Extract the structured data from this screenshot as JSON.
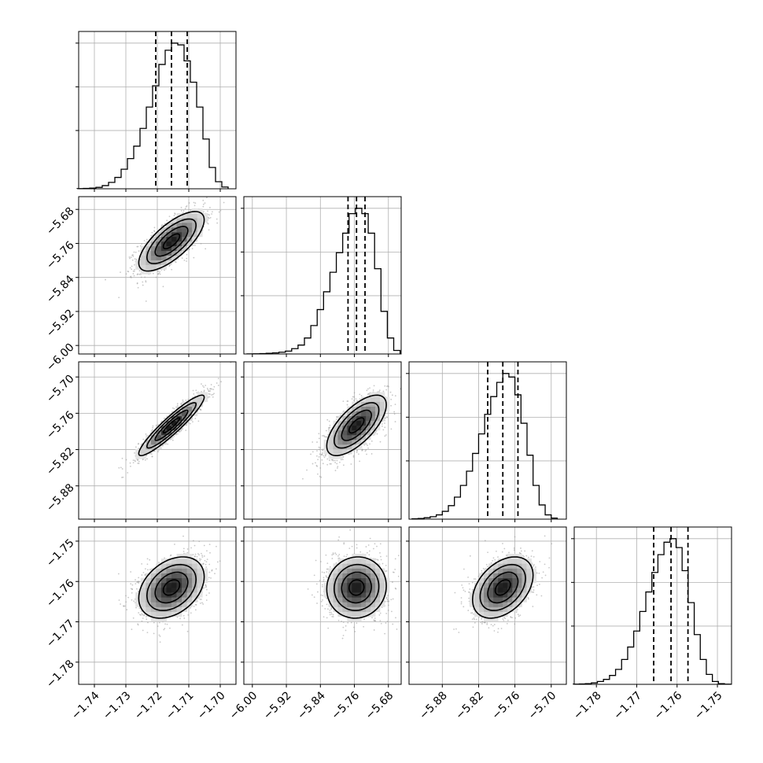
{
  "chart_data": {
    "type": "corner",
    "description_type": "scatter",
    "grid": true,
    "parameters": [
      {
        "id": "p1",
        "range": [
          -1.745,
          -1.695
        ],
        "ticks": [
          -1.74,
          -1.73,
          -1.72,
          -1.71,
          -1.7
        ],
        "tick_labels": [
          "−1.74",
          "−1.73",
          "−1.72",
          "−1.71",
          "−1.70"
        ],
        "mean": -1.7155,
        "sd": 0.0052,
        "quantiles": [
          -1.7205,
          -1.7155,
          -1.7105
        ],
        "hist": [
          [
            -1.7445,
            0.005
          ],
          [
            -1.7425,
            0.01
          ],
          [
            -1.7405,
            0.02
          ],
          [
            -1.7385,
            0.04
          ],
          [
            -1.7365,
            0.09
          ],
          [
            -1.7345,
            0.18
          ],
          [
            -1.7325,
            0.32
          ],
          [
            -1.7305,
            0.55
          ],
          [
            -1.7285,
            0.85
          ],
          [
            -1.7265,
            1.2
          ],
          [
            -1.7245,
            1.7
          ],
          [
            -1.7225,
            2.3
          ],
          [
            -1.7205,
            2.9
          ],
          [
            -1.7185,
            3.5
          ],
          [
            -1.7165,
            3.9
          ],
          [
            -1.7145,
            4.1
          ],
          [
            -1.7125,
            4.05
          ],
          [
            -1.7105,
            3.6
          ],
          [
            -1.7085,
            3.0
          ],
          [
            -1.7065,
            2.3
          ],
          [
            -1.7045,
            1.4
          ],
          [
            -1.7025,
            0.6
          ],
          [
            -1.7005,
            0.2
          ],
          [
            -1.6985,
            0.05
          ]
        ]
      },
      {
        "id": "p2",
        "range": [
          -6.02,
          -5.65
        ],
        "ticks": [
          -6.0,
          -5.92,
          -5.84,
          -5.76,
          -5.68
        ],
        "tick_labels": [
          "−6.00",
          "−5.92",
          "−5.84",
          "−5.76",
          "−5.68"
        ],
        "mean": -5.755,
        "sd": 0.035,
        "quantiles": [
          -5.775,
          -5.755,
          -5.735
        ],
        "hist": [
          [
            -6.005,
            0.002
          ],
          [
            -5.99,
            0.005
          ],
          [
            -5.975,
            0.01
          ],
          [
            -5.96,
            0.02
          ],
          [
            -5.945,
            0.03
          ],
          [
            -5.93,
            0.05
          ],
          [
            -5.915,
            0.08
          ],
          [
            -5.9,
            0.15
          ],
          [
            -5.885,
            0.25
          ],
          [
            -5.87,
            0.45
          ],
          [
            -5.855,
            0.8
          ],
          [
            -5.84,
            1.25
          ],
          [
            -5.825,
            1.75
          ],
          [
            -5.81,
            2.3
          ],
          [
            -5.795,
            2.85
          ],
          [
            -5.78,
            3.4
          ],
          [
            -5.765,
            3.95
          ],
          [
            -5.75,
            4.1
          ],
          [
            -5.735,
            3.95
          ],
          [
            -5.72,
            3.4
          ],
          [
            -5.705,
            2.4
          ],
          [
            -5.69,
            1.2
          ],
          [
            -5.675,
            0.45
          ],
          [
            -5.66,
            0.1
          ]
        ]
      },
      {
        "id": "p3",
        "range": [
          -5.935,
          -5.675
        ],
        "ticks": [
          -5.88,
          -5.82,
          -5.76,
          -5.7
        ],
        "tick_labels": [
          "−5.88",
          "−5.82",
          "−5.76",
          "−5.70"
        ],
        "mean": -5.78,
        "sd": 0.025,
        "quantiles": [
          -5.805,
          -5.78,
          -5.755
        ],
        "hist": [
          [
            -5.925,
            0.01
          ],
          [
            -5.915,
            0.02
          ],
          [
            -5.905,
            0.04
          ],
          [
            -5.895,
            0.07
          ],
          [
            -5.885,
            0.12
          ],
          [
            -5.875,
            0.22
          ],
          [
            -5.865,
            0.38
          ],
          [
            -5.855,
            0.62
          ],
          [
            -5.845,
            0.95
          ],
          [
            -5.835,
            1.35
          ],
          [
            -5.825,
            1.85
          ],
          [
            -5.815,
            2.4
          ],
          [
            -5.805,
            2.95
          ],
          [
            -5.795,
            3.45
          ],
          [
            -5.785,
            3.85
          ],
          [
            -5.775,
            4.1
          ],
          [
            -5.765,
            4.0
          ],
          [
            -5.755,
            3.5
          ],
          [
            -5.745,
            2.7
          ],
          [
            -5.735,
            1.8
          ],
          [
            -5.725,
            0.95
          ],
          [
            -5.715,
            0.4
          ],
          [
            -5.705,
            0.12
          ],
          [
            -5.695,
            0.03
          ]
        ]
      },
      {
        "id": "p4",
        "range": [
          -1.7855,
          -1.7465
        ],
        "ticks": [
          -1.78,
          -1.77,
          -1.76,
          -1.75
        ],
        "tick_labels": [
          "−1.78",
          "−1.77",
          "−1.76",
          "−1.75"
        ],
        "mean": -1.7615,
        "sd": 0.0038,
        "quantiles": [
          -1.7658,
          -1.7615,
          -1.7573
        ],
        "hist": [
          [
            -1.785,
            0.005
          ],
          [
            -1.7835,
            0.01
          ],
          [
            -1.782,
            0.02
          ],
          [
            -1.7805,
            0.04
          ],
          [
            -1.779,
            0.08
          ],
          [
            -1.7775,
            0.14
          ],
          [
            -1.776,
            0.25
          ],
          [
            -1.7745,
            0.42
          ],
          [
            -1.773,
            0.7
          ],
          [
            -1.7715,
            1.05
          ],
          [
            -1.77,
            1.5
          ],
          [
            -1.7685,
            2.05
          ],
          [
            -1.767,
            2.6
          ],
          [
            -1.7655,
            3.15
          ],
          [
            -1.764,
            3.65
          ],
          [
            -1.7625,
            4.0
          ],
          [
            -1.761,
            4.1
          ],
          [
            -1.7595,
            3.85
          ],
          [
            -1.758,
            3.2
          ],
          [
            -1.7565,
            2.3
          ],
          [
            -1.755,
            1.4
          ],
          [
            -1.7535,
            0.7
          ],
          [
            -1.752,
            0.28
          ],
          [
            -1.7505,
            0.08
          ],
          [
            -1.749,
            0.02
          ],
          [
            -1.7475,
            0.005
          ]
        ]
      }
    ],
    "pairs": [
      {
        "row": 1,
        "col": 0,
        "rho": 0.72
      },
      {
        "row": 2,
        "col": 0,
        "rho": 0.93
      },
      {
        "row": 2,
        "col": 1,
        "rho": 0.68
      },
      {
        "row": 3,
        "col": 0,
        "rho": 0.35
      },
      {
        "row": 3,
        "col": 1,
        "rho": 0.05
      },
      {
        "row": 3,
        "col": 2,
        "rho": 0.4
      }
    ],
    "contour_levels_sigma": [
      0.5,
      1.0,
      1.5,
      2.0
    ]
  }
}
